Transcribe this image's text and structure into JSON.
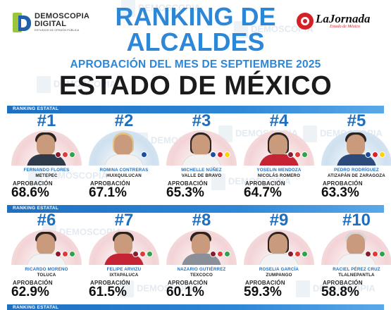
{
  "header": {
    "logo_left": {
      "line1": "DEMOSCOPIA",
      "line2": "DIGITAL",
      "line3": "ESTUDIOS DE OPINIÓN PÚBLICA"
    },
    "logo_right": {
      "name": "LaJornada",
      "sub": "Estado de México"
    },
    "title_line1": "RANKING DE",
    "title_line2": "ALCALDES",
    "subtitle": "APROBACIÓN DEL MES DE SEPTIEMBRE 2025",
    "state": "ESTADO DE MÉXICO"
  },
  "watermark": {
    "line1": "DEMOSCOPIA",
    "line2": "DIGITAL"
  },
  "section_label": "RANKING ESTATAL",
  "approval_label": "APROBACIÓN",
  "colors": {
    "accent": "#2d86d6",
    "dark_blue": "#1f6fc0",
    "text": "#1b1b1b"
  },
  "mayors": [
    {
      "rank": "#1",
      "name": "FERNANDO FLORES",
      "municipality": "METEPEC",
      "approval": "68.6%",
      "approval_value": 68.6,
      "parties": [
        "morena",
        "pt",
        "pvem"
      ]
    },
    {
      "rank": "#2",
      "name": "ROMINA CONTRERAS",
      "municipality": "HUIXQUILUCAN",
      "approval": "67.1%",
      "approval_value": 67.1,
      "parties": [
        "pan"
      ]
    },
    {
      "rank": "#3",
      "name": "MICHELLE NÚÑEZ",
      "municipality": "VALLE DE BRAVO",
      "approval": "65.3%",
      "approval_value": 65.3,
      "parties": [
        "pan",
        "pri",
        "prd"
      ]
    },
    {
      "rank": "#4",
      "name": "YOSELIN MENDOZA",
      "municipality": "NICOLÁS ROMERO",
      "approval": "64.7%",
      "approval_value": 64.7,
      "parties": [
        "morena",
        "pt",
        "pvem"
      ]
    },
    {
      "rank": "#5",
      "name": "PEDRO RODRÍGUEZ",
      "municipality": "ATIZAPÁN DE ZARAGOZA",
      "approval": "63.3%",
      "approval_value": 63.3,
      "parties": [
        "pan",
        "pri",
        "prd"
      ]
    },
    {
      "rank": "#6",
      "name": "RICARDO MORENO",
      "municipality": "TOLUCA",
      "approval": "62.9%",
      "approval_value": 62.9,
      "parties": [
        "morena",
        "pt",
        "pvem"
      ]
    },
    {
      "rank": "#7",
      "name": "FELIPE ARVIZU",
      "municipality": "IXTAPALUCA",
      "approval": "61.5%",
      "approval_value": 61.5,
      "parties": [
        "morena",
        "pt",
        "pvem"
      ]
    },
    {
      "rank": "#8",
      "name": "NAZARIO GUTIÉRREZ",
      "municipality": "TEXCOCO",
      "approval": "60.1%",
      "approval_value": 60.1,
      "parties": [
        "morena",
        "pt",
        "pvem"
      ]
    },
    {
      "rank": "#9",
      "name": "ROSELIA GARCÍA",
      "municipality": "ZUMPANGO",
      "approval": "59.3%",
      "approval_value": 59.3,
      "parties": [
        "morena",
        "pt",
        "pvem"
      ]
    },
    {
      "rank": "#10",
      "name": "RACIEL PÉREZ CRUZ",
      "municipality": "TLALNEPANTLA",
      "approval": "58.8%",
      "approval_value": 58.8,
      "parties": [
        "morena",
        "pt",
        "pvem"
      ]
    }
  ]
}
